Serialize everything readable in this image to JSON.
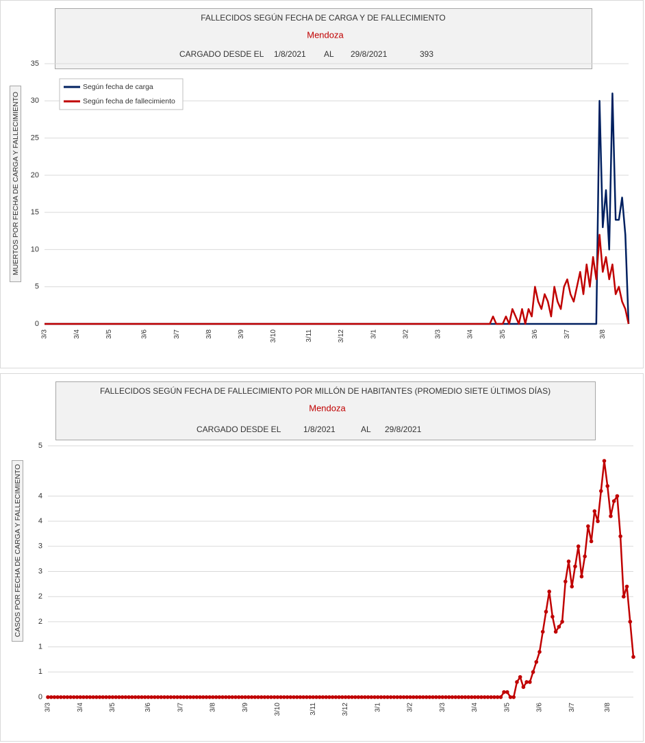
{
  "chart_data": [
    {
      "type": "line",
      "title": "FALLECIDOS SEGÚN FECHA DE CARGA Y DE FALLECIMIENTO",
      "subtitle": "Mendoza",
      "loaded_label": "CARGADO DESDE EL",
      "from": "1/8/2021",
      "to_label": "AL",
      "to": "29/8/2021",
      "total": "393",
      "ylabel": "MUERTOS  POR FECHA DE CARGA  Y FALLECIMIENTO",
      "ylim": [
        0,
        35
      ],
      "yticks": [
        0,
        5,
        10,
        15,
        20,
        25,
        30,
        35
      ],
      "grid": true,
      "legend": "top-left",
      "categories": [
        "3/3",
        null,
        null,
        null,
        null,
        null,
        null,
        null,
        null,
        null,
        "3/4",
        null,
        null,
        null,
        null,
        null,
        null,
        null,
        null,
        null,
        "3/5",
        null,
        null,
        null,
        null,
        null,
        null,
        null,
        null,
        null,
        null,
        "3/6",
        null,
        null,
        null,
        null,
        null,
        null,
        null,
        null,
        null,
        "3/7",
        null,
        null,
        null,
        null,
        null,
        null,
        null,
        null,
        null,
        "3/8",
        null,
        null,
        null,
        null,
        null,
        null,
        null,
        null,
        null,
        "3/9",
        null,
        null,
        null,
        null,
        null,
        null,
        null,
        null,
        null,
        "3/10",
        null,
        null,
        null,
        null,
        null,
        null,
        null,
        null,
        null,
        null,
        "3/11",
        null,
        null,
        null,
        null,
        null,
        null,
        null,
        null,
        null,
        "3/12",
        null,
        null,
        null,
        null,
        null,
        null,
        null,
        null,
        null,
        "3/1",
        null,
        null,
        null,
        null,
        null,
        null,
        null,
        null,
        null,
        "3/2",
        null,
        null,
        null,
        null,
        null,
        null,
        null,
        null,
        null,
        "3/3",
        null,
        null,
        null,
        null,
        null,
        null,
        null,
        null,
        null,
        "3/4",
        null,
        null,
        null,
        null,
        null,
        null,
        null,
        null,
        null,
        "3/5",
        null,
        null,
        null,
        null,
        null,
        null,
        null,
        null,
        null,
        "3/6",
        null,
        null,
        null,
        null,
        null,
        null,
        null,
        null,
        null,
        "3/7",
        null,
        null,
        null,
        null,
        null,
        null,
        null,
        null,
        null,
        null,
        "3/8",
        null,
        null,
        null,
        null,
        null,
        null,
        null,
        null
      ],
      "series": [
        {
          "name": "Según fecha de carga",
          "color": "#002060",
          "values": [
            0,
            0,
            0,
            0,
            0,
            0,
            0,
            0,
            0,
            0,
            0,
            0,
            0,
            0,
            0,
            0,
            0,
            0,
            0,
            0,
            0,
            0,
            0,
            0,
            0,
            0,
            0,
            0,
            0,
            0,
            0,
            0,
            0,
            0,
            0,
            0,
            0,
            0,
            0,
            0,
            0,
            0,
            0,
            0,
            0,
            0,
            0,
            0,
            0,
            0,
            0,
            0,
            0,
            0,
            0,
            0,
            0,
            0,
            0,
            0,
            0,
            0,
            0,
            0,
            0,
            0,
            0,
            0,
            0,
            0,
            0,
            0,
            0,
            0,
            0,
            0,
            0,
            0,
            0,
            0,
            0,
            0,
            0,
            0,
            0,
            0,
            0,
            0,
            0,
            0,
            0,
            0,
            0,
            0,
            0,
            0,
            0,
            0,
            0,
            0,
            0,
            0,
            0,
            0,
            0,
            0,
            0,
            0,
            0,
            0,
            0,
            0,
            0,
            0,
            0,
            0,
            0,
            0,
            0,
            0,
            0,
            0,
            0,
            0,
            0,
            0,
            0,
            0,
            0,
            0,
            0,
            0,
            0,
            0,
            0,
            0,
            0,
            0,
            0,
            0,
            0,
            0,
            0,
            0,
            0,
            0,
            0,
            0,
            0,
            0,
            0,
            0,
            0,
            0,
            0,
            0,
            0,
            0,
            0,
            0,
            0,
            0,
            0,
            0,
            0,
            0,
            0,
            0,
            0,
            0,
            0,
            0,
            30,
            13,
            18,
            10,
            31,
            14,
            14,
            17,
            12,
            0
          ]
        },
        {
          "name": "Según fecha de fallecimiento",
          "color": "#c00000",
          "values": [
            0,
            0,
            0,
            0,
            0,
            0,
            0,
            0,
            0,
            0,
            0,
            0,
            0,
            0,
            0,
            0,
            0,
            0,
            0,
            0,
            0,
            0,
            0,
            0,
            0,
            0,
            0,
            0,
            0,
            0,
            0,
            0,
            0,
            0,
            0,
            0,
            0,
            0,
            0,
            0,
            0,
            0,
            0,
            0,
            0,
            0,
            0,
            0,
            0,
            0,
            0,
            0,
            0,
            0,
            0,
            0,
            0,
            0,
            0,
            0,
            0,
            0,
            0,
            0,
            0,
            0,
            0,
            0,
            0,
            0,
            0,
            0,
            0,
            0,
            0,
            0,
            0,
            0,
            0,
            0,
            0,
            0,
            0,
            0,
            0,
            0,
            0,
            0,
            0,
            0,
            0,
            0,
            0,
            0,
            0,
            0,
            0,
            0,
            0,
            0,
            0,
            0,
            0,
            0,
            0,
            0,
            0,
            0,
            0,
            0,
            0,
            0,
            0,
            0,
            0,
            0,
            0,
            0,
            0,
            0,
            0,
            0,
            0,
            0,
            0,
            0,
            0,
            0,
            0,
            0,
            0,
            0,
            0,
            0,
            0,
            0,
            0,
            0,
            0,
            1,
            0,
            0,
            0,
            1,
            0,
            2,
            1,
            0,
            2,
            0,
            2,
            1,
            5,
            3,
            2,
            4,
            3,
            1,
            5,
            3,
            2,
            5,
            6,
            4,
            3,
            5,
            7,
            4,
            8,
            5,
            9,
            6,
            12,
            7,
            9,
            6,
            8,
            4,
            5,
            3,
            2,
            0
          ]
        }
      ]
    },
    {
      "type": "line",
      "title": "FALLECIDOS SEGÚN FECHA DE FALLECIMIENTO POR MILLÓN DE HABITANTES (PROMEDIO SIETE ÚLTIMOS DÍAS)",
      "subtitle": "Mendoza",
      "loaded_label": "CARGADO DESDE EL",
      "from": "1/8/2021",
      "to_label": "AL",
      "to": "29/8/2021",
      "ylabel": "CASOS POR FECHA  DE CARGA  Y FALLECIMIENTO",
      "ylim": [
        0,
        5
      ],
      "yticks": [
        0,
        {
          "value": 0.5,
          "label": "1"
        },
        1,
        {
          "value": 1.5,
          "label": "2"
        },
        2,
        {
          "value": 2.5,
          "label": "3"
        },
        3,
        {
          "value": 3.5,
          "label": "4"
        },
        4,
        5
      ],
      "grid": true,
      "markers": true,
      "categories": [
        "3/3",
        null,
        null,
        null,
        null,
        null,
        null,
        null,
        null,
        null,
        "3/4",
        null,
        null,
        null,
        null,
        null,
        null,
        null,
        null,
        null,
        "3/5",
        null,
        null,
        null,
        null,
        null,
        null,
        null,
        null,
        null,
        null,
        "3/6",
        null,
        null,
        null,
        null,
        null,
        null,
        null,
        null,
        null,
        "3/7",
        null,
        null,
        null,
        null,
        null,
        null,
        null,
        null,
        null,
        "3/8",
        null,
        null,
        null,
        null,
        null,
        null,
        null,
        null,
        null,
        "3/9",
        null,
        null,
        null,
        null,
        null,
        null,
        null,
        null,
        null,
        "3/10",
        null,
        null,
        null,
        null,
        null,
        null,
        null,
        null,
        null,
        null,
        "3/11",
        null,
        null,
        null,
        null,
        null,
        null,
        null,
        null,
        null,
        "3/12",
        null,
        null,
        null,
        null,
        null,
        null,
        null,
        null,
        null,
        "3/1",
        null,
        null,
        null,
        null,
        null,
        null,
        null,
        null,
        null,
        "3/2",
        null,
        null,
        null,
        null,
        null,
        null,
        null,
        null,
        null,
        "3/3",
        null,
        null,
        null,
        null,
        null,
        null,
        null,
        null,
        null,
        "3/4",
        null,
        null,
        null,
        null,
        null,
        null,
        null,
        null,
        null,
        "3/5",
        null,
        null,
        null,
        null,
        null,
        null,
        null,
        null,
        null,
        "3/6",
        null,
        null,
        null,
        null,
        null,
        null,
        null,
        null,
        null,
        "3/7",
        null,
        null,
        null,
        null,
        null,
        null,
        null,
        null,
        null,
        null,
        "3/8",
        null,
        null,
        null,
        null,
        null,
        null,
        null,
        null
      ],
      "series": [
        {
          "color": "#c00000",
          "values": [
            0,
            0,
            0,
            0,
            0,
            0,
            0,
            0,
            0,
            0,
            0,
            0,
            0,
            0,
            0,
            0,
            0,
            0,
            0,
            0,
            0,
            0,
            0,
            0,
            0,
            0,
            0,
            0,
            0,
            0,
            0,
            0,
            0,
            0,
            0,
            0,
            0,
            0,
            0,
            0,
            0,
            0,
            0,
            0,
            0,
            0,
            0,
            0,
            0,
            0,
            0,
            0,
            0,
            0,
            0,
            0,
            0,
            0,
            0,
            0,
            0,
            0,
            0,
            0,
            0,
            0,
            0,
            0,
            0,
            0,
            0,
            0,
            0,
            0,
            0,
            0,
            0,
            0,
            0,
            0,
            0,
            0,
            0,
            0,
            0,
            0,
            0,
            0,
            0,
            0,
            0,
            0,
            0,
            0,
            0,
            0,
            0,
            0,
            0,
            0,
            0,
            0,
            0,
            0,
            0,
            0,
            0,
            0,
            0,
            0,
            0,
            0,
            0,
            0,
            0,
            0,
            0,
            0,
            0,
            0,
            0,
            0,
            0,
            0,
            0,
            0,
            0,
            0,
            0,
            0,
            0,
            0,
            0,
            0,
            0,
            0,
            0,
            0,
            0,
            0,
            0,
            0.1,
            0.1,
            0,
            0,
            0.3,
            0.4,
            0.2,
            0.3,
            0.3,
            0.5,
            0.7,
            0.9,
            1.3,
            1.7,
            2.1,
            1.6,
            1.3,
            1.4,
            1.5,
            2.3,
            2.7,
            2.2,
            2.6,
            3.0,
            2.4,
            2.8,
            3.4,
            3.1,
            3.7,
            3.5,
            4.1,
            4.7,
            4.2,
            3.6,
            3.9,
            4.0,
            3.2,
            2.0,
            2.2,
            1.5,
            0.8
          ]
        }
      ]
    }
  ]
}
